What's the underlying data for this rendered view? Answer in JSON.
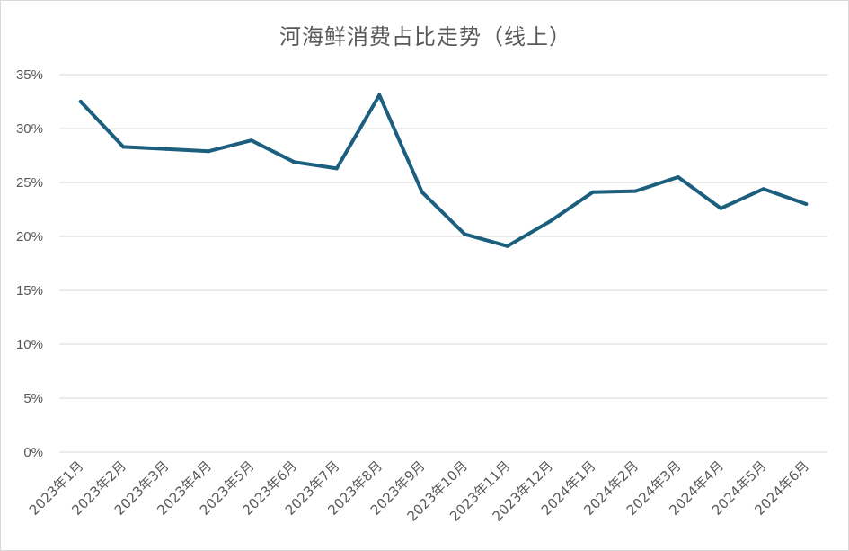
{
  "chart_data": {
    "type": "line",
    "title": "河海鲜消费占比走势（线上）",
    "xlabel": "",
    "ylabel": "",
    "ylim": [
      0,
      0.35
    ],
    "yticks": [
      "0%",
      "5%",
      "10%",
      "15%",
      "20%",
      "25%",
      "30%",
      "35%"
    ],
    "grid": true,
    "legend": "none",
    "categories": [
      "2023年1月",
      "2023年2月",
      "2023年3月",
      "2023年4月",
      "2023年5月",
      "2023年6月",
      "2023年7月",
      "2023年8月",
      "2023年9月",
      "2023年10月",
      "2023年11月",
      "2023年12月",
      "2024年1月",
      "2024年2月",
      "2024年3月",
      "2024年4月",
      "2024年5月",
      "2024年6月"
    ],
    "series": [
      {
        "values": [
          0.325,
          0.283,
          0.281,
          0.279,
          0.289,
          0.269,
          0.263,
          0.331,
          0.241,
          0.202,
          0.191,
          0.214,
          0.241,
          0.242,
          0.255,
          0.226,
          0.244,
          0.23
        ]
      }
    ],
    "colors": {
      "line": "#1b5e7e",
      "grid": "#d9d9d9",
      "text": "#595959"
    }
  }
}
